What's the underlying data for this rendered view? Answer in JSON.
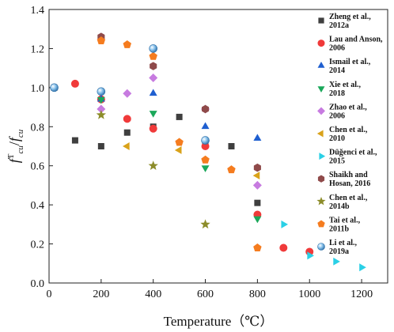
{
  "chart_data": {
    "type": "scatter",
    "xlabel": "Temperature（℃）",
    "ylabel_main": "f",
    "ylabel_sup": "T",
    "ylabel_sub": "cu",
    "ylabel_div": "/",
    "ylabel_main2": "f",
    "ylabel_sub2": "cu",
    "xlim": [
      0,
      1300
    ],
    "ylim": [
      0.0,
      1.4
    ],
    "xticks": [
      0,
      200,
      400,
      600,
      800,
      1000,
      1200
    ],
    "yticks": [
      0.0,
      0.2,
      0.4,
      0.6,
      0.8,
      1.0,
      1.2,
      1.4
    ],
    "ytick_labels": [
      "0.0",
      "0.2",
      "0.4",
      "0.6",
      "0.8",
      "1.0",
      "1.2",
      "1.4"
    ],
    "legend_position": "right",
    "grid": false,
    "series": [
      {
        "name": [
          "Zheng et al.,",
          "2012a"
        ],
        "marker": "square",
        "color": "#3f3f3f",
        "points": [
          [
            20,
            1.0
          ],
          [
            100,
            0.73
          ],
          [
            200,
            0.7
          ],
          [
            300,
            0.77
          ],
          [
            400,
            0.8
          ],
          [
            500,
            0.85
          ],
          [
            600,
            0.71
          ],
          [
            700,
            0.7
          ],
          [
            800,
            0.41
          ]
        ]
      },
      {
        "name": [
          "Lau and Anson,",
          "2006"
        ],
        "marker": "circle",
        "color": "#f03a3a",
        "points": [
          [
            20,
            1.0
          ],
          [
            100,
            1.02
          ],
          [
            200,
            0.94
          ],
          [
            300,
            0.84
          ],
          [
            400,
            0.79
          ],
          [
            600,
            0.7
          ],
          [
            800,
            0.35
          ],
          [
            900,
            0.18
          ],
          [
            1000,
            0.16
          ]
        ]
      },
      {
        "name": [
          "Ismail et al.,",
          "2014"
        ],
        "marker": "triangle-up",
        "color": "#1f5fd0",
        "points": [
          [
            200,
            0.94
          ],
          [
            400,
            0.97
          ],
          [
            600,
            0.8
          ],
          [
            800,
            0.74
          ]
        ]
      },
      {
        "name": [
          "Xie et al.,",
          "2018"
        ],
        "marker": "triangle-down",
        "color": "#1aa85a",
        "points": [
          [
            200,
            0.94
          ],
          [
            400,
            0.87
          ],
          [
            600,
            0.59
          ],
          [
            800,
            0.33
          ]
        ]
      },
      {
        "name": [
          "Zhao et al.,",
          "2006"
        ],
        "marker": "diamond",
        "color": "#c77be0",
        "points": [
          [
            200,
            0.89
          ],
          [
            300,
            0.97
          ],
          [
            400,
            1.05
          ],
          [
            600,
            0.89
          ],
          [
            800,
            0.5
          ]
        ]
      },
      {
        "name": [
          "Chen et al.,",
          "2010"
        ],
        "marker": "triangle-left",
        "color": "#d9a21a",
        "points": [
          [
            300,
            0.7
          ],
          [
            500,
            0.68
          ],
          [
            800,
            0.55
          ]
        ]
      },
      {
        "name": [
          "Düğenci et al.,",
          "2015"
        ],
        "marker": "triangle-right",
        "color": "#2ad0e6",
        "points": [
          [
            900,
            0.3
          ],
          [
            1000,
            0.14
          ],
          [
            1100,
            0.11
          ],
          [
            1200,
            0.08
          ]
        ]
      },
      {
        "name": [
          "Shaikh and",
          "Hosan, 2016"
        ],
        "marker": "hexagon",
        "color": "#8f4a4a",
        "points": [
          [
            200,
            1.26
          ],
          [
            400,
            1.11
          ],
          [
            600,
            0.89
          ],
          [
            800,
            0.59
          ]
        ]
      },
      {
        "name": [
          "Chen et al.,",
          "2014b"
        ],
        "marker": "star",
        "color": "#8c8c2a",
        "points": [
          [
            200,
            0.86
          ],
          [
            400,
            0.6
          ],
          [
            600,
            0.3
          ]
        ]
      },
      {
        "name": [
          "Tai et al.,",
          "2011b"
        ],
        "marker": "pentagon",
        "color": "#f57c1f",
        "points": [
          [
            200,
            1.24
          ],
          [
            300,
            1.22
          ],
          [
            400,
            1.16
          ],
          [
            500,
            0.72
          ],
          [
            600,
            0.63
          ],
          [
            700,
            0.58
          ],
          [
            800,
            0.18
          ]
        ]
      },
      {
        "name": [
          "Li et al.,",
          "2019a"
        ],
        "marker": "sphere",
        "color": "#4a9fd8",
        "points": [
          [
            20,
            1.0
          ],
          [
            200,
            0.98
          ],
          [
            400,
            1.2
          ],
          [
            600,
            0.73
          ]
        ]
      }
    ]
  }
}
